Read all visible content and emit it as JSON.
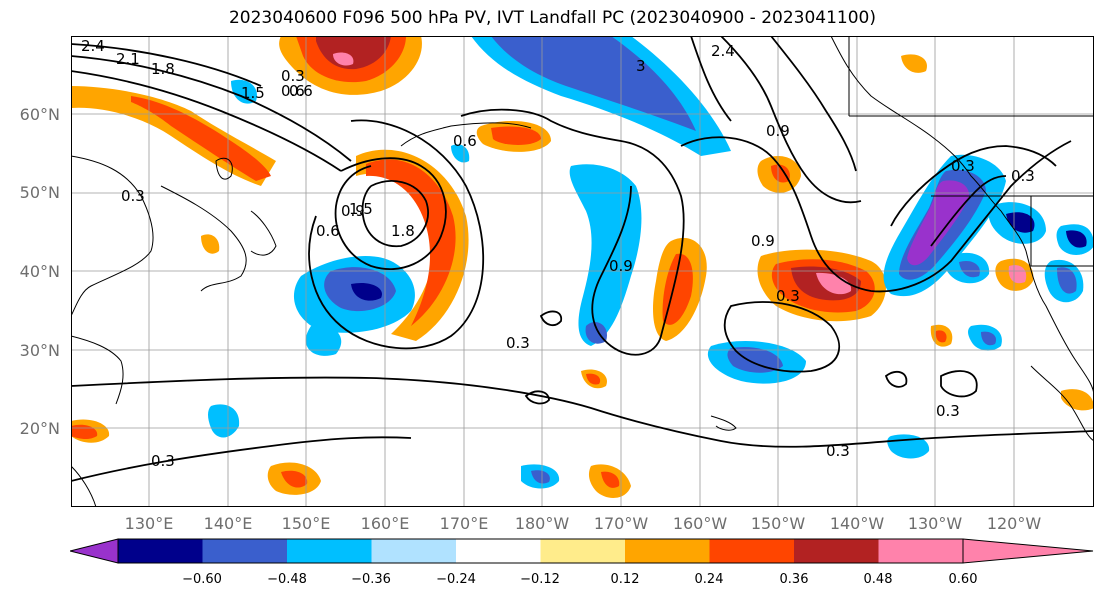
{
  "title": "2023040600 F096 500 hPa PV, IVT Landfall PC (2023040900 - 2023041100)",
  "lat_labels": [
    "60°N",
    "50°N",
    "40°N",
    "30°N",
    "20°N"
  ],
  "lon_labels": [
    "130°E",
    "140°E",
    "150°E",
    "160°E",
    "170°E",
    "180°W",
    "170°W",
    "160°W",
    "150°W",
    "140°W",
    "130°W",
    "120°W"
  ],
  "colorbar": {
    "ticks": [
      "−0.60",
      "−0.48",
      "−0.36",
      "−0.24",
      "−0.12",
      "0.12",
      "0.24",
      "0.36",
      "0.48",
      "0.60"
    ],
    "colors": [
      "#9932cc",
      "#00008b",
      "#3a5fcd",
      "#00bfff",
      "#b0e2ff",
      "#ffffff",
      "#ffec8b",
      "#ffa500",
      "#ff4500",
      "#b22222",
      "#ff82ab"
    ]
  },
  "contour_labels": [
    "2.4",
    "2.1",
    "1.8",
    "1.5",
    "0.6",
    "0.3",
    "0.3",
    "0.3",
    "0.3",
    "0.6",
    "0.9",
    "0.9",
    "0.3",
    "1.8",
    "1.5",
    "0.6",
    "0.3",
    "0.9",
    "0.3",
    "0.3",
    "2.4",
    "3",
    "0.6",
    "0.9",
    "0.3"
  ]
}
